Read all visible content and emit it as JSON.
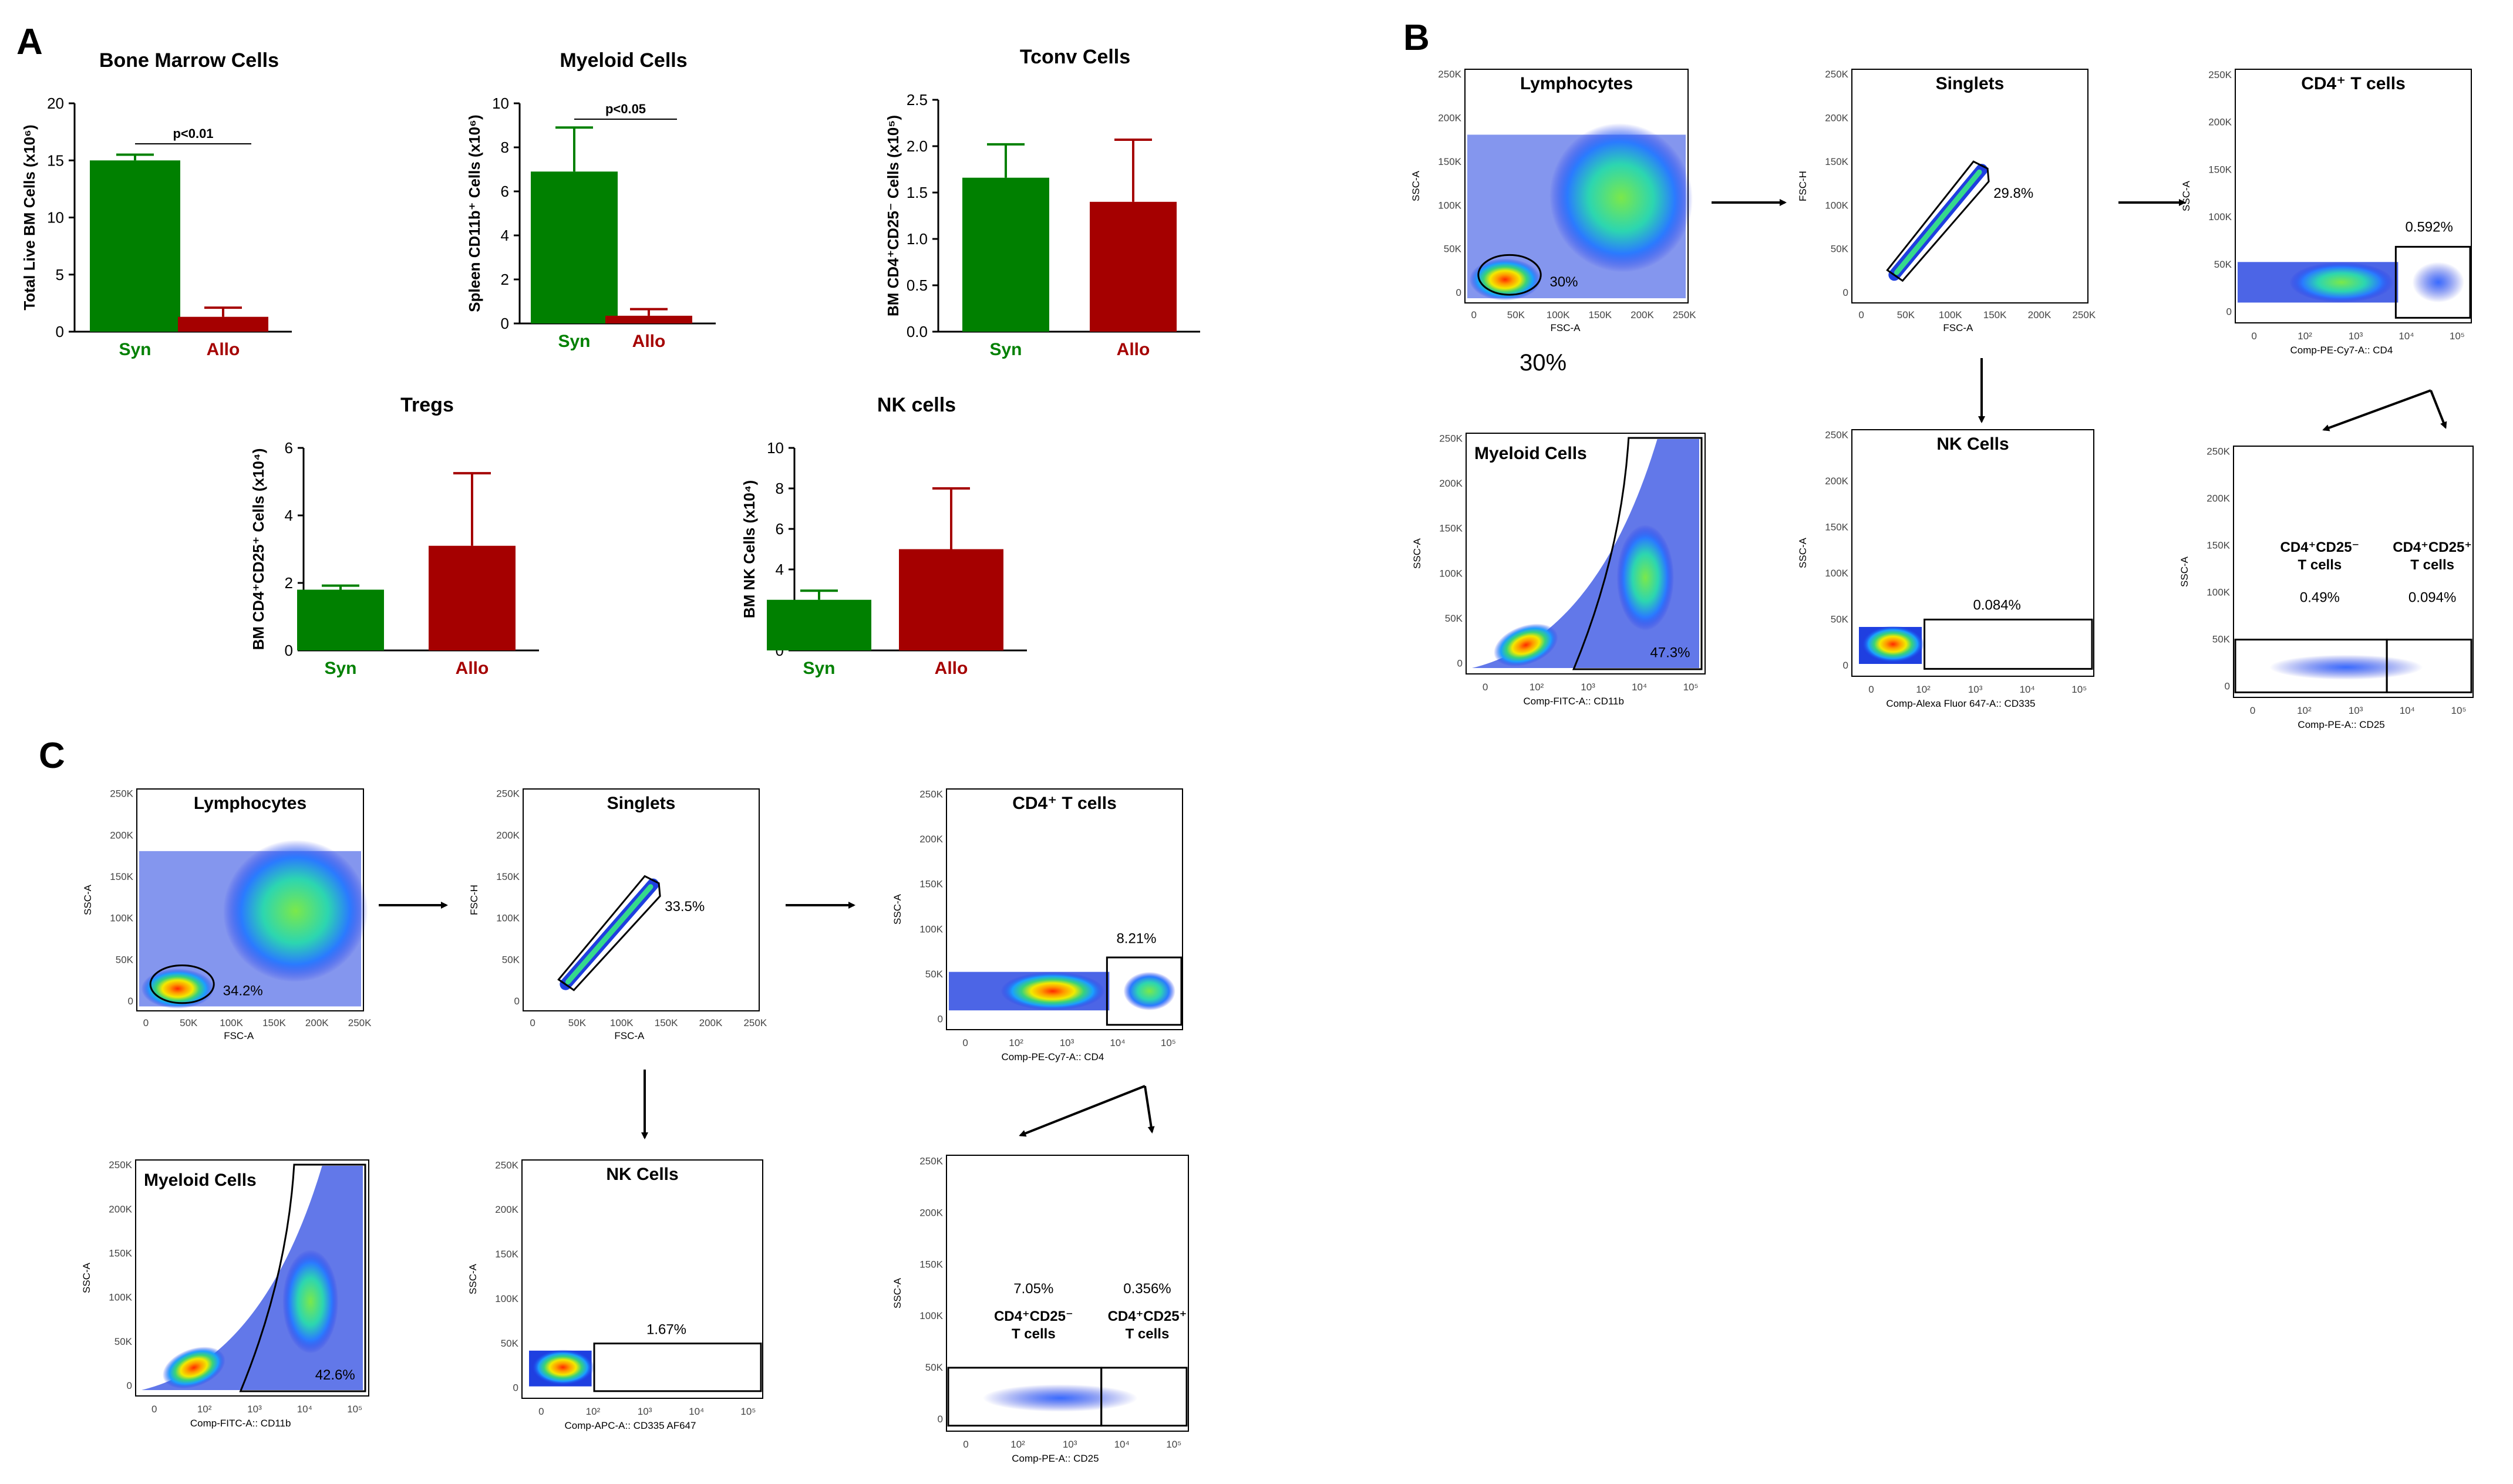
{
  "panel_letters": [
    "A",
    "B",
    "C"
  ],
  "chart_data": [
    {
      "type": "bar",
      "id": "bm",
      "title": "Bone Marrow Cells",
      "ylabel": "Total Live BM Cells (x10⁶)",
      "categories": [
        "Syn",
        "Allo"
      ],
      "values": [
        15,
        1.3
      ],
      "errors": [
        0.5,
        0.8
      ],
      "ylim": [
        0,
        20
      ],
      "yticks": [
        0,
        5,
        10,
        15,
        20
      ],
      "pvalue": "p<0.01",
      "colors": [
        "#008000",
        "#A50000"
      ]
    },
    {
      "type": "bar",
      "id": "my",
      "title": "Myeloid Cells",
      "ylabel": "Spleen CD11b⁺ Cells (x10⁶)",
      "categories": [
        "Syn",
        "Allo"
      ],
      "values": [
        6.9,
        0.35
      ],
      "errors": [
        2.0,
        0.3
      ],
      "ylim": [
        0,
        10
      ],
      "yticks": [
        0,
        2,
        4,
        6,
        8,
        10
      ],
      "pvalue": "p<0.05",
      "colors": [
        "#008000",
        "#A50000"
      ]
    },
    {
      "type": "bar",
      "id": "tc",
      "title": "Tconv Cells",
      "ylabel": "BM CD4⁺CD25⁻ Cells (x10⁵)",
      "categories": [
        "Syn",
        "Allo"
      ],
      "values": [
        1.66,
        1.4
      ],
      "errors": [
        0.36,
        0.67
      ],
      "ylim": [
        0,
        2.5
      ],
      "yticks": [
        "0.0",
        "0.5",
        "1.0",
        "1.5",
        "2.0",
        "2.5"
      ],
      "pvalue": "",
      "colors": [
        "#008000",
        "#A50000"
      ]
    },
    {
      "type": "bar",
      "id": "tr",
      "title": "Tregs",
      "ylabel": "BM CD4⁺CD25⁺ Cells (x10⁴)",
      "categories": [
        "Syn",
        "Allo"
      ],
      "values": [
        1.8,
        3.1
      ],
      "errors": [
        0.12,
        2.15
      ],
      "ylim": [
        0,
        6
      ],
      "yticks": [
        0,
        2,
        4,
        6
      ],
      "pvalue": "",
      "colors": [
        "#008000",
        "#A50000"
      ]
    },
    {
      "type": "bar",
      "id": "nk",
      "title": "NK cells",
      "ylabel": "BM NK Cells (x10⁴)",
      "categories": [
        "Syn",
        "Allo"
      ],
      "values": [
        2.5,
        5.0
      ],
      "errors": [
        0.45,
        3.0
      ],
      "ylim": [
        0,
        10
      ],
      "yticks": [
        0,
        2,
        4,
        6,
        8,
        10
      ],
      "pvalue": "",
      "colors": [
        "#008000",
        "#A50000"
      ]
    }
  ],
  "flow_text": {
    "lin_ticks": [
      "0",
      "50K",
      "100K",
      "150K",
      "200K",
      "250K"
    ],
    "log_ticks": [
      "0",
      "10²",
      "10³",
      "10⁴",
      "10⁵"
    ],
    "ssc_a": "SSC-A",
    "fsc_a": "FSC-A",
    "fsc_h": "FSC-H",
    "B": {
      "lymph_title": "Lymphocytes",
      "lymph_pct": "30%",
      "lymph_below": "30%",
      "sing_title": "Singlets",
      "sing_pct": "29.8%",
      "cd4_title": "CD4⁺ T cells",
      "cd4_pct": "0.592%",
      "cd4_x": "Comp-PE-Cy7-A:: CD4",
      "my_title": "Myeloid Cells",
      "my_pct": "47.3%",
      "my_x": "Comp-FITC-A:: CD11b",
      "nk_title": "NK Cells",
      "nk_pct": "0.084%",
      "nk_x": "Comp-Alexa Fluor 647-A:: CD335",
      "treg_neg_label": "CD4⁺CD25⁻",
      "treg_pos_label": "CD4⁺CD25⁺",
      "tcells": "T cells",
      "treg_neg_pct": "0.49%",
      "treg_pos_pct": "0.094%",
      "treg_x": "Comp-PE-A:: CD25"
    },
    "C": {
      "lymph_title": "Lymphocytes",
      "lymph_pct": "34.2%",
      "sing_title": "Singlets",
      "sing_pct": "33.5%",
      "cd4_title": "CD4⁺ T cells",
      "cd4_pct": "8.21%",
      "cd4_x": "Comp-PE-Cy7-A:: CD4",
      "my_title": "Myeloid Cells",
      "my_pct": "42.6%",
      "my_x": "Comp-FITC-A:: CD11b",
      "nk_title": "NK Cells",
      "nk_pct": "1.67%",
      "nk_x": "Comp-APC-A:: CD335 AF647",
      "treg_neg_label": "CD4⁺CD25⁻",
      "treg_pos_label": "CD4⁺CD25⁺",
      "tcells": "T cells",
      "treg_neg_pct": "7.05%",
      "treg_pos_pct": "0.356%",
      "treg_x": "Comp-PE-A:: CD25"
    }
  }
}
